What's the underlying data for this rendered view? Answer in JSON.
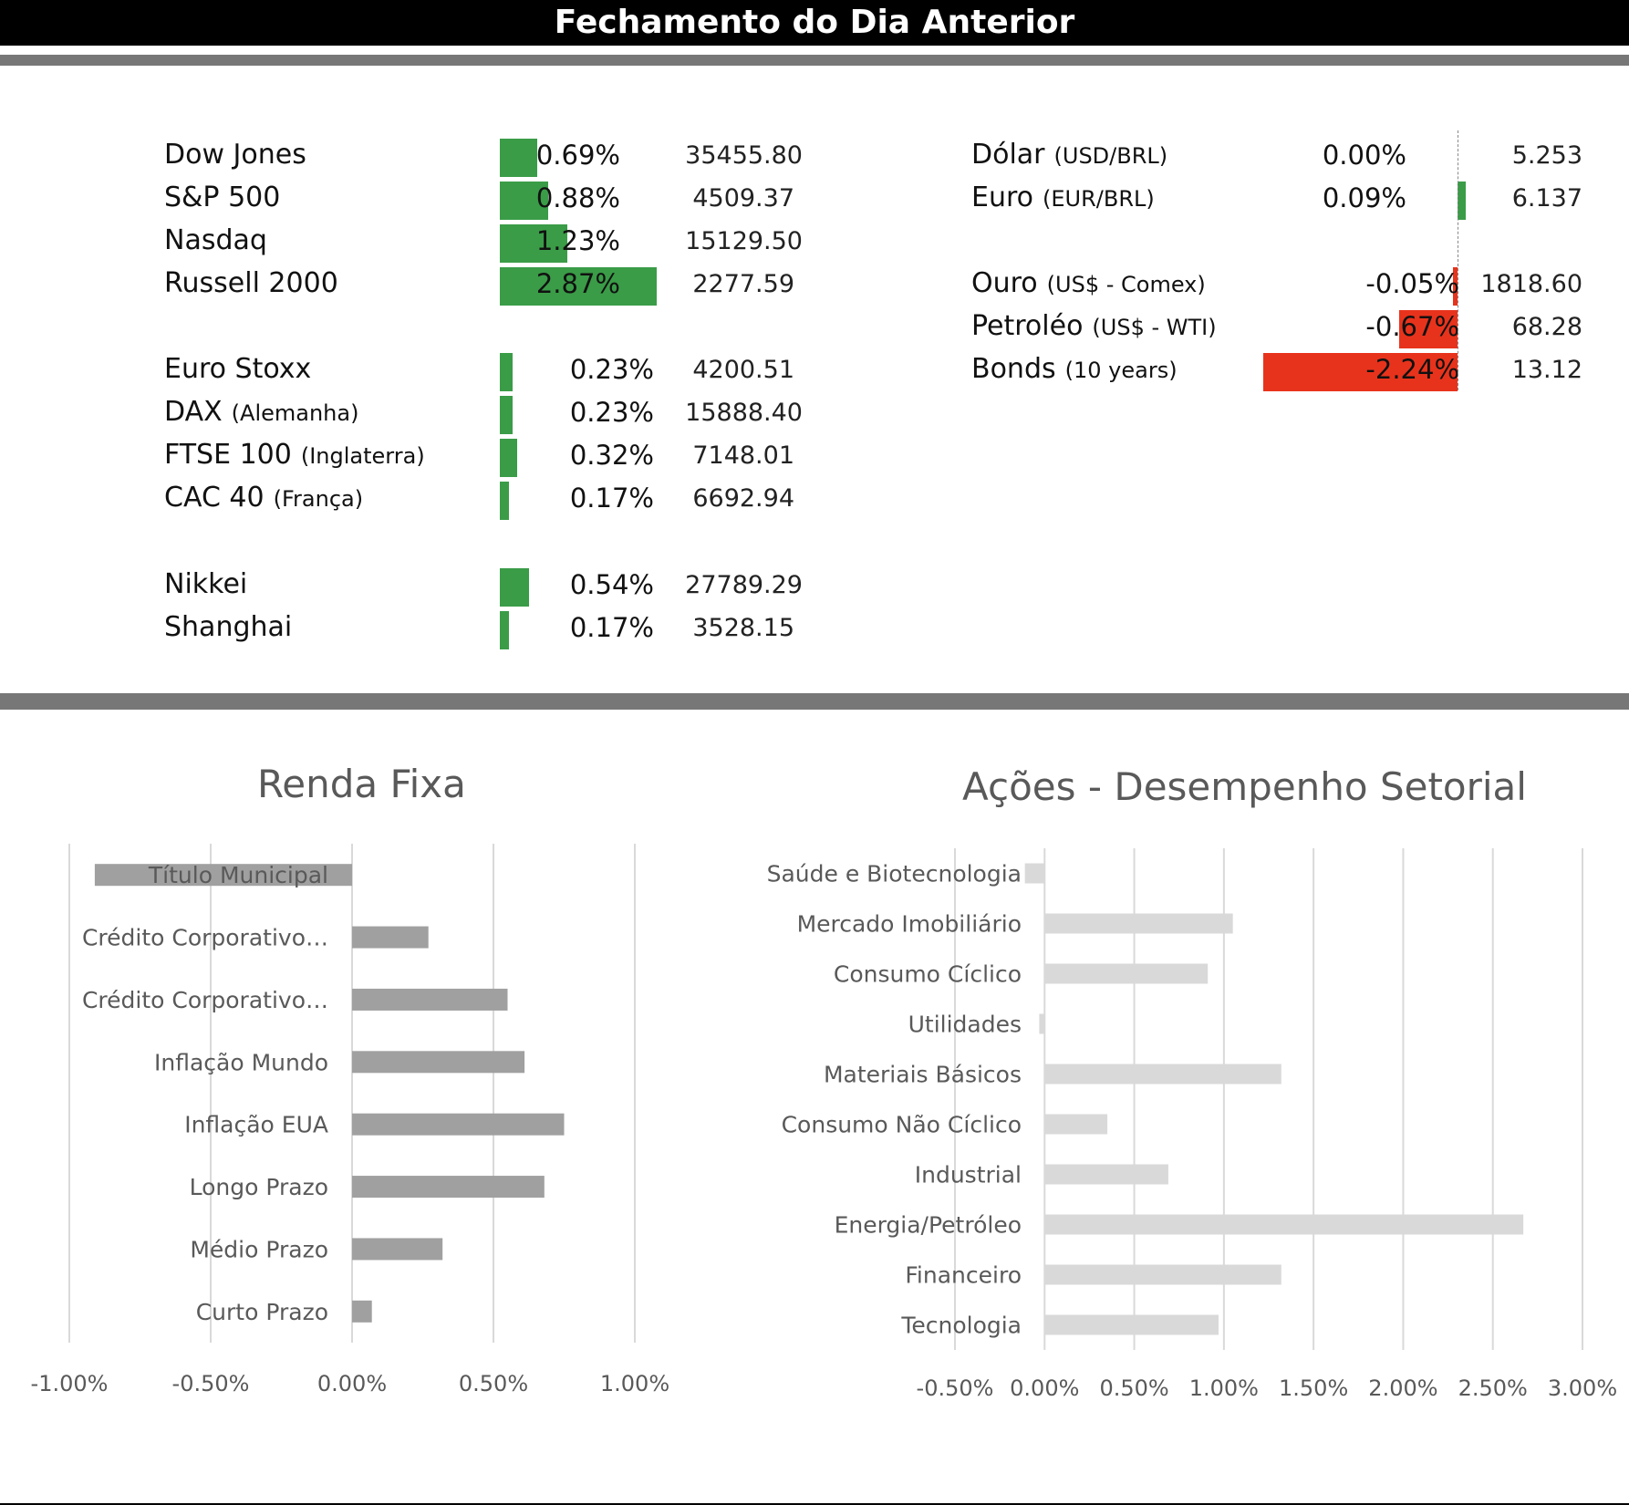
{
  "header": {
    "title": "Fechamento do Dia Anterior"
  },
  "indices": [
    {
      "name": "Dow Jones",
      "suffix": "",
      "pct": "0.69%",
      "price": "35455.80",
      "change": 0.69
    },
    {
      "name": "S&P 500",
      "suffix": "",
      "pct": "0.88%",
      "price": "4509.37",
      "change": 0.88
    },
    {
      "name": "Nasdaq",
      "suffix": "",
      "pct": "1.23%",
      "price": "15129.50",
      "change": 1.23
    },
    {
      "name": "Russell 2000",
      "suffix": "",
      "pct": "2.87%",
      "price": "2277.59",
      "change": 2.87
    },
    {
      "name": "Euro Stoxx",
      "suffix": "",
      "pct": "0.23%",
      "price": "4200.51",
      "change": 0.23
    },
    {
      "name": "DAX",
      "suffix": "(Alemanha)",
      "pct": "0.23%",
      "price": "15888.40",
      "change": 0.23
    },
    {
      "name": "FTSE 100",
      "suffix": "(Inglaterra)",
      "pct": "0.32%",
      "price": "7148.01",
      "change": 0.32
    },
    {
      "name": "CAC 40",
      "suffix": "(França)",
      "pct": "0.17%",
      "price": "6692.94",
      "change": 0.17
    },
    {
      "name": "Nikkei",
      "suffix": "",
      "pct": "0.54%",
      "price": "27789.29",
      "change": 0.54
    },
    {
      "name": "Shanghai",
      "suffix": "",
      "pct": "0.17%",
      "price": "3528.15",
      "change": 0.17
    }
  ],
  "fx_commodities": [
    {
      "name": "Dólar",
      "suffix": "(USD/BRL)",
      "pct": "0.00%",
      "price": "5.253",
      "change": 0.0
    },
    {
      "name": "Euro",
      "suffix": "(EUR/BRL)",
      "pct": "0.09%",
      "price": "6.137",
      "change": 0.09
    },
    {
      "name": "Ouro",
      "suffix": "(US$ - Comex)",
      "pct": "-0.05%",
      "price": "1818.60",
      "change": -0.05
    },
    {
      "name": "Petroléo",
      "suffix": "(US$ - WTI)",
      "pct": "-0.67%",
      "price": "68.28",
      "change": -0.67
    },
    {
      "name": "Bonds",
      "suffix": "(10 years)",
      "pct": "-2.24%",
      "price": "13.12",
      "change": -2.24
    }
  ],
  "colors": {
    "positive": "#3a9c47",
    "negative": "#e8331c",
    "renda_bar": "#a0a0a0",
    "acoes_bar": "#d9d9d9",
    "grid": "#d9d9d9",
    "axis_text": "#595959"
  },
  "chart_data": [
    {
      "type": "bar",
      "orientation": "horizontal",
      "title": "Renda Fixa",
      "categories": [
        "Título Municipal",
        "Crédito Corporativo…",
        "Crédito Corporativo…",
        "Inflação Mundo",
        "Inflação EUA",
        "Longo Prazo",
        "Médio Prazo",
        "Curto Prazo"
      ],
      "values": [
        -0.91,
        0.27,
        0.55,
        0.61,
        0.75,
        0.68,
        0.32,
        0.07
      ],
      "xlim": [
        -1.0,
        1.0
      ],
      "ticks": [
        -1.0,
        -0.5,
        0.0,
        0.5,
        1.0
      ],
      "tick_labels": [
        "-1.00%",
        "-0.50%",
        "0.00%",
        "0.50%",
        "1.00%"
      ],
      "grid": true
    },
    {
      "type": "bar",
      "orientation": "horizontal",
      "title": "Ações - Desempenho Setorial",
      "categories": [
        "Saúde e Biotecnologia",
        "Mercado Imobiliário",
        "Consumo Cíclico",
        "Utilidades",
        "Materiais Básicos",
        "Consumo Não Cíclico",
        "Industrial",
        "Energia/Petróleo",
        "Financeiro",
        "Tecnologia"
      ],
      "values": [
        -0.11,
        1.05,
        0.91,
        -0.03,
        1.32,
        0.35,
        0.69,
        2.67,
        1.32,
        0.97
      ],
      "xlim": [
        -0.5,
        3.0
      ],
      "ticks": [
        -0.5,
        0.0,
        0.5,
        1.0,
        1.5,
        2.0,
        2.5,
        3.0
      ],
      "tick_labels": [
        "-0.50%",
        "0.00%",
        "0.50%",
        "1.00%",
        "1.50%",
        "2.00%",
        "2.50%",
        "3.00%"
      ],
      "grid": true
    }
  ]
}
